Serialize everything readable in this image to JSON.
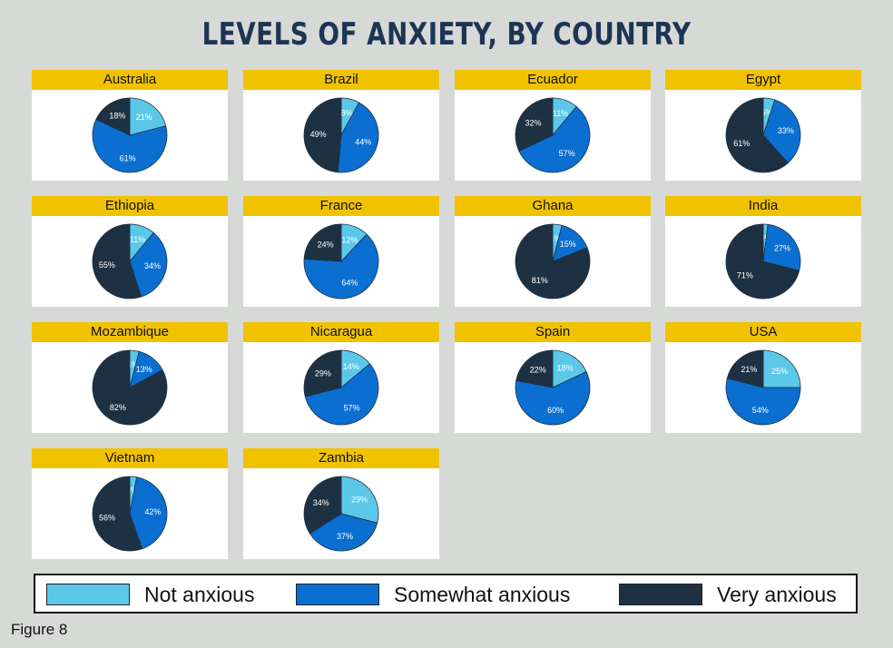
{
  "title": "LEVELS OF ANXIETY, BY COUNTRY",
  "caption": "Figure 8",
  "colors": {
    "not_anxious": "#5bc8ea",
    "somewhat_anxious": "#0b6fd1",
    "very_anxious": "#1e3143",
    "header": "#f1c200"
  },
  "legend": {
    "items": [
      {
        "label": "Not anxious",
        "color": "#5bc8ea"
      },
      {
        "label": "Somewhat anxious",
        "color": "#0b6fd1"
      },
      {
        "label": "Very anxious",
        "color": "#1e3143"
      }
    ]
  },
  "chart_data": {
    "type": "pie",
    "series_order": [
      "Not anxious",
      "Somewhat anxious",
      "Very anxious"
    ],
    "charts": [
      {
        "country": "Australia",
        "values": [
          21,
          61,
          18
        ]
      },
      {
        "country": "Brazil",
        "values": [
          8,
          44,
          49
        ]
      },
      {
        "country": "Ecuador",
        "values": [
          11,
          57,
          32
        ]
      },
      {
        "country": "Egypt",
        "values": [
          5,
          33,
          61
        ]
      },
      {
        "country": "Ethiopia",
        "values": [
          11,
          34,
          55
        ]
      },
      {
        "country": "France",
        "values": [
          12,
          64,
          24
        ]
      },
      {
        "country": "Ghana",
        "values": [
          4,
          15,
          81
        ]
      },
      {
        "country": "India",
        "values": [
          2,
          27,
          71
        ]
      },
      {
        "country": "Mozambique",
        "values": [
          4,
          13,
          82
        ]
      },
      {
        "country": "Nicaragua",
        "values": [
          14,
          57,
          29
        ]
      },
      {
        "country": "Spain",
        "values": [
          18,
          60,
          22
        ]
      },
      {
        "country": "USA",
        "values": [
          25,
          54,
          21
        ]
      },
      {
        "country": "Vietnam",
        "values": [
          3,
          42,
          56
        ]
      },
      {
        "country": "Zambia",
        "values": [
          29,
          37,
          34
        ]
      }
    ]
  }
}
